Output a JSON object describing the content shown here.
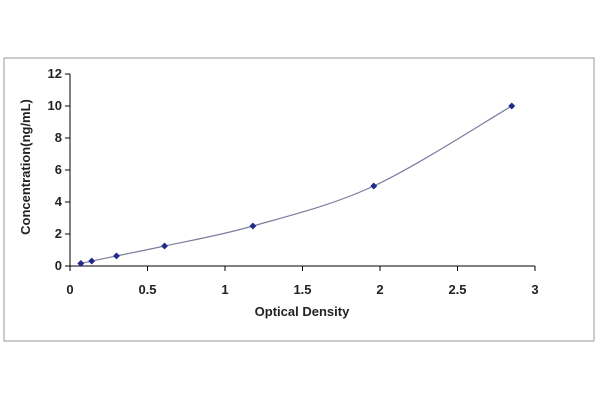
{
  "chart_data": {
    "type": "scatter",
    "title": "",
    "xlabel": "Optical Density",
    "ylabel": "Concentration(ng/mL)",
    "xlim": [
      0,
      3
    ],
    "ylim": [
      0,
      12
    ],
    "x_ticks": [
      0,
      0.5,
      1,
      1.5,
      2,
      2.5,
      3
    ],
    "x_tick_labels": [
      "0",
      "0.5",
      "1",
      "1.5",
      "2",
      "2.5",
      "3"
    ],
    "y_ticks": [
      0,
      2,
      4,
      6,
      8,
      10,
      12
    ],
    "y_tick_labels": [
      "0",
      "2",
      "4",
      "6",
      "8",
      "10",
      "12"
    ],
    "grid": false,
    "legend": "none",
    "fit_curve": true,
    "series": [
      {
        "x": [
          0.07,
          0.14,
          0.3,
          0.61,
          1.18,
          1.96,
          2.85
        ],
        "y": [
          0.16,
          0.31,
          0.63,
          1.25,
          2.5,
          5,
          10
        ],
        "color": "#1f2a8a"
      }
    ],
    "curve_color": "#7a7f9e",
    "axis_color": "#000000",
    "frame_color": "#9a9a9a"
  }
}
